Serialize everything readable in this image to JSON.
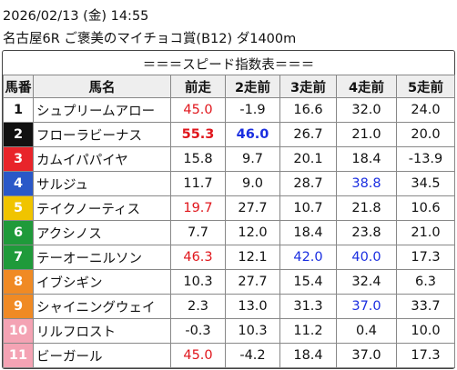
{
  "header": {
    "datetime": "2026/02/13 (金) 14:55",
    "race": "名古屋6R ご褒美のマイチョコ賞(B12) ダ1400m"
  },
  "table": {
    "title": "＝＝＝スピード指数表＝＝＝",
    "columns": [
      "馬番",
      "馬名",
      "前走",
      "2走前",
      "3走前",
      "4走前",
      "5走前"
    ],
    "rows": [
      [
        "1",
        "シュプリームアロー",
        "45.0",
        "-1.9",
        "16.6",
        "32.0",
        "24.0"
      ],
      [
        "2",
        "フローラビーナス",
        "55.3",
        "46.0",
        "26.7",
        "21.0",
        "20.0"
      ],
      [
        "3",
        "カムイパパイヤ",
        "15.8",
        "9.7",
        "20.1",
        "18.4",
        "-13.9"
      ],
      [
        "4",
        "サルジュ",
        "11.7",
        "9.0",
        "28.7",
        "38.8",
        "34.5"
      ],
      [
        "5",
        "テイクノーティス",
        "19.7",
        "27.7",
        "10.7",
        "21.8",
        "10.6"
      ],
      [
        "6",
        "アクシノス",
        "7.7",
        "12.0",
        "18.4",
        "23.8",
        "21.0"
      ],
      [
        "7",
        "テーオーニルソン",
        "46.3",
        "12.1",
        "42.0",
        "40.0",
        "17.3"
      ],
      [
        "8",
        "イブシギン",
        "10.3",
        "27.7",
        "15.4",
        "32.4",
        "6.3"
      ],
      [
        "9",
        "シャイニングウェイ",
        "2.3",
        "13.0",
        "31.3",
        "37.0",
        "33.7"
      ],
      [
        "10",
        "リルフロスト",
        "-0.3",
        "10.3",
        "11.2",
        "0.4",
        "10.0"
      ],
      [
        "11",
        "ビーガール",
        "45.0",
        "-4.2",
        "18.4",
        "37.0",
        "17.3"
      ]
    ]
  }
}
